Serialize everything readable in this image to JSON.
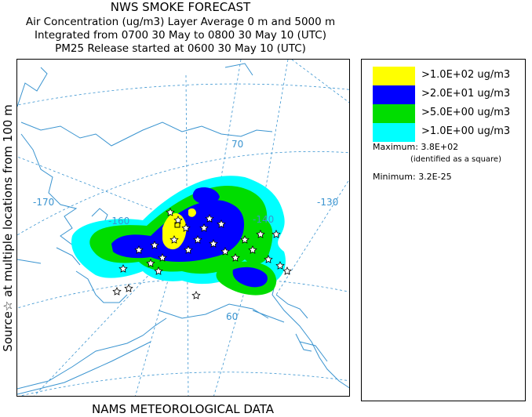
{
  "titles": {
    "line1": "NWS SMOKE FORECAST",
    "line2": "Air Concentration (ug/m3) Layer Average    0 m and  5000 m",
    "line3": "Integrated from 0700 30 May to 0800 30 May 10 (UTC)",
    "line4": "PM25 Release started at 0600 30 May 10 (UTC)"
  },
  "side_label": "Source☆  at multiple locations    from    100 m",
  "footer": "NAMS METEOROLOGICAL DATA",
  "legend": {
    "items": [
      {
        "label": ">1.0E+02 ug/m3",
        "color": "#ffff00"
      },
      {
        "label": ">2.0E+01 ug/m3",
        "color": "#0000ff"
      },
      {
        "label": ">5.0E+00 ug/m3",
        "color": "#00dd00"
      },
      {
        "label": ">1.0E+00 ug/m3",
        "color": "#00ffff"
      }
    ],
    "maximum_label": "Maximum:",
    "maximum_value": "3.8E+02",
    "maximum_note": "(identified as a square)",
    "minimum_label": "Minimum:",
    "minimum_value": "3.2E-25"
  },
  "map": {
    "longitude_labels": [
      "-170",
      "-160",
      "-140",
      "-130"
    ],
    "latitude_labels": [
      "70",
      "60"
    ],
    "coast_color": "#3a94d0",
    "grid_color": "#3a94d0"
  }
}
